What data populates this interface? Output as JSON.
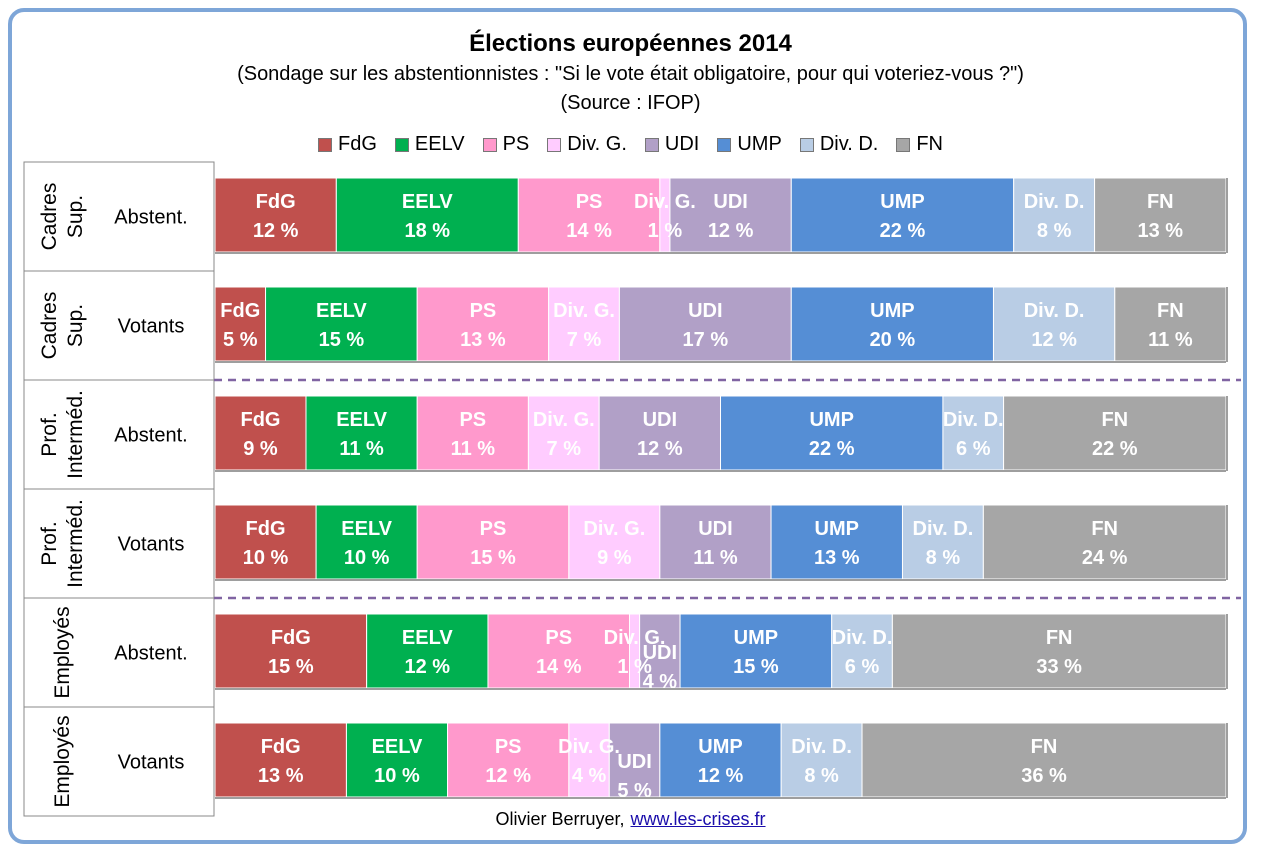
{
  "title": "Élections européennes 2014",
  "subtitle": "(Sondage sur les abstentionnistes : \"Si le vote était obligatoire, pour qui voteriez-vous ?\")",
  "source": "(Source : IFOP)",
  "footer": {
    "author": "Olivier Berruyer,",
    "link": "www.les-crises.fr"
  },
  "colors": {
    "FdG": "#c0504d",
    "EELV": "#00b050",
    "PS": "#ff99cc",
    "Div. G.": "#ffccff",
    "UDI": "#b1a0c7",
    "UMP": "#558ed5",
    "Div. D.": "#b9cde5",
    "FN": "#a6a6a6"
  },
  "chart_data": {
    "type": "bar",
    "orientation": "horizontal-stacked-100",
    "title": "Élections européennes 2014",
    "legend": [
      "FdG",
      "EELV",
      "PS",
      "Div. G.",
      "UDI",
      "UMP",
      "Div. D.",
      "FN"
    ],
    "legend_position": "top",
    "rows": [
      {
        "group": "Cadres Sup.",
        "label": "Abstent.",
        "values": [
          12,
          18,
          14,
          1,
          12,
          22,
          8,
          13
        ]
      },
      {
        "group": "Cadres Sup.",
        "label": "Votants",
        "values": [
          5,
          15,
          13,
          7,
          17,
          20,
          12,
          11
        ]
      },
      {
        "group": "Prof. Interméd.",
        "label": "Abstent.",
        "values": [
          9,
          11,
          11,
          7,
          12,
          22,
          6,
          22
        ]
      },
      {
        "group": "Prof. Interméd.",
        "label": "Votants",
        "values": [
          10,
          10,
          15,
          9,
          11,
          13,
          8,
          24
        ]
      },
      {
        "group": "Employés",
        "label": "Abstent.",
        "values": [
          15,
          12,
          14,
          1,
          4,
          15,
          6,
          33
        ]
      },
      {
        "group": "Employés",
        "label": "Votants",
        "values": [
          13,
          10,
          12,
          4,
          5,
          12,
          8,
          36
        ]
      }
    ],
    "unit": "%"
  }
}
